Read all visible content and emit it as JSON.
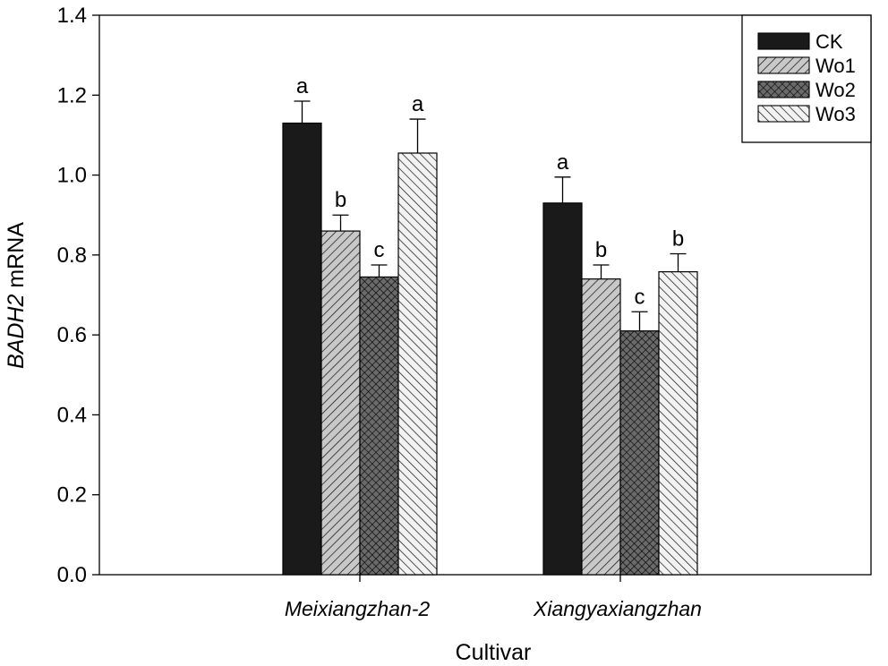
{
  "chart_data": {
    "type": "bar",
    "title": "",
    "xlabel": "Cultivar",
    "ylabel_italic": "BADH2",
    "ylabel_rest": " mRNA",
    "ylim": [
      0,
      1.4
    ],
    "yticks": [
      "0.0",
      "0.2",
      "0.4",
      "0.6",
      "0.8",
      "1.0",
      "1.2",
      "1.4"
    ],
    "categories": [
      "Meixiangzhan-2",
      "Xiangyaxiangzhan"
    ],
    "series": [
      {
        "name": "CK",
        "pattern": "solid",
        "values": [
          1.13,
          0.93
        ],
        "errors": [
          0.055,
          0.065
        ],
        "letters": [
          "a",
          "a"
        ]
      },
      {
        "name": "Wo1",
        "pattern": "fwd",
        "values": [
          0.86,
          0.74
        ],
        "errors": [
          0.04,
          0.035
        ],
        "letters": [
          "b",
          "b"
        ]
      },
      {
        "name": "Wo2",
        "pattern": "cross",
        "values": [
          0.745,
          0.61
        ],
        "errors": [
          0.03,
          0.048
        ],
        "letters": [
          "c",
          "c"
        ]
      },
      {
        "name": "Wo3",
        "pattern": "back",
        "values": [
          1.055,
          0.758
        ],
        "errors": [
          0.085,
          0.045
        ],
        "letters": [
          "a",
          "b"
        ]
      }
    ],
    "legend_position": "top-right",
    "grid": false
  }
}
